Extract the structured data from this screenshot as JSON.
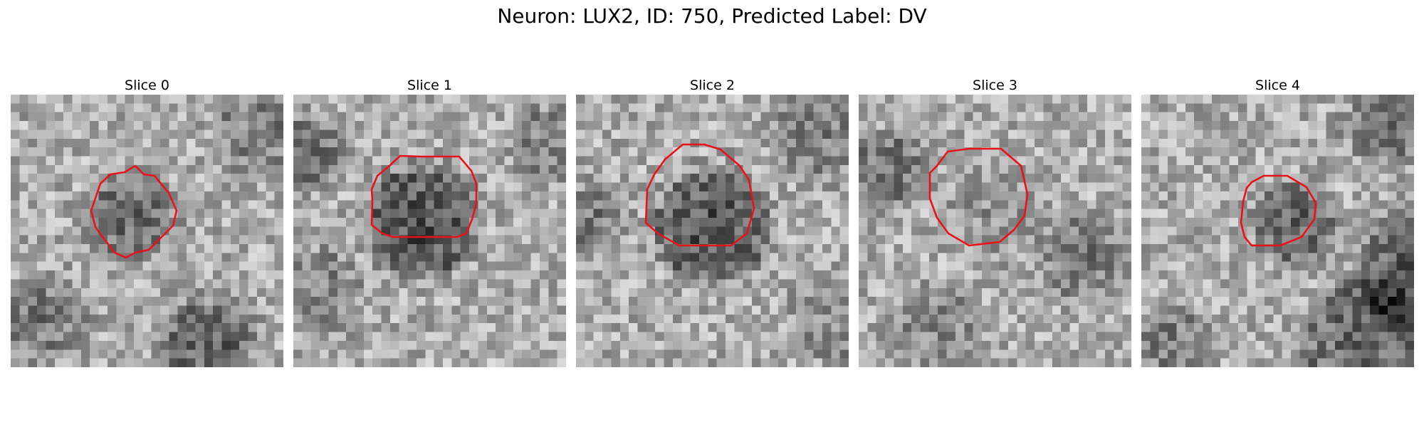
{
  "figure": {
    "title": "Neuron: LUX2, ID: 750, Predicted Label: DV",
    "outline_color": "#e8121b"
  },
  "panels": [
    {
      "title": "Slice 0"
    },
    {
      "title": "Slice 1"
    },
    {
      "title": "Slice 2"
    },
    {
      "title": "Slice 3"
    },
    {
      "title": "Slice 4"
    }
  ]
}
